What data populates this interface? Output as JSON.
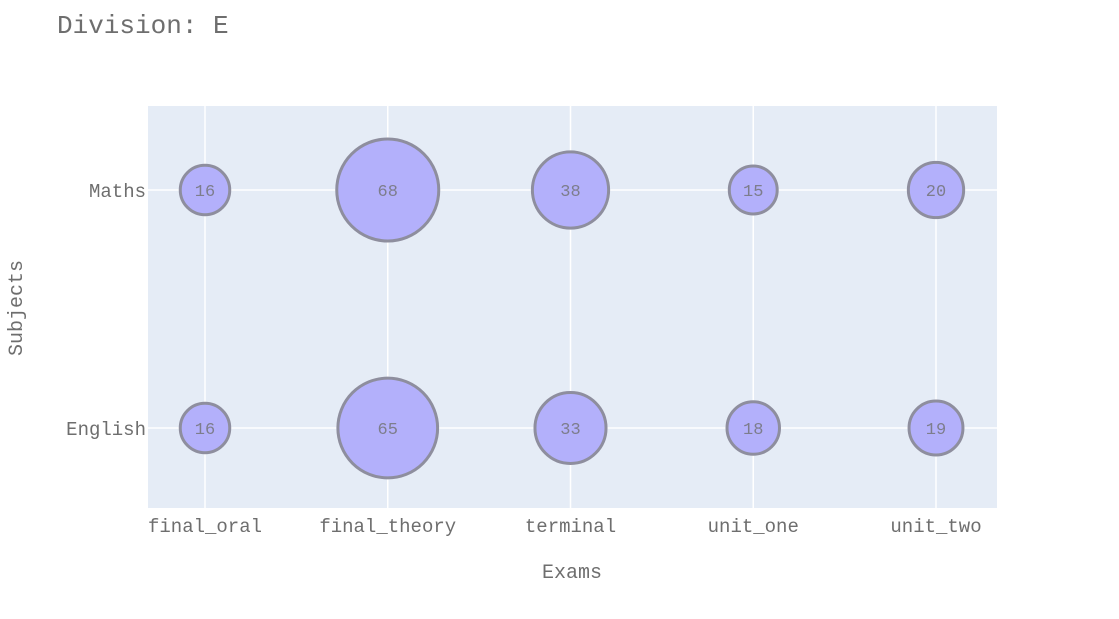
{
  "chart_data": {
    "type": "scatter",
    "title": "Division: E",
    "xlabel": "Exams",
    "ylabel": "Subjects",
    "categories": [
      "final_oral",
      "final_theory",
      "terminal",
      "unit_one",
      "unit_two"
    ],
    "y_categories": [
      "English",
      "Maths"
    ],
    "grid": true,
    "series": [
      {
        "subject": "Maths",
        "values": [
          16,
          68,
          38,
          15,
          20
        ]
      },
      {
        "subject": "English",
        "values": [
          16,
          65,
          33,
          18,
          19
        ]
      }
    ],
    "colors": {
      "bubble_fill": "#b3b0fb",
      "bubble_stroke": "#8e8e9e",
      "plot_bg": "#e5ecf6",
      "grid": "#ffffff",
      "text": "#6e6e6e"
    }
  }
}
